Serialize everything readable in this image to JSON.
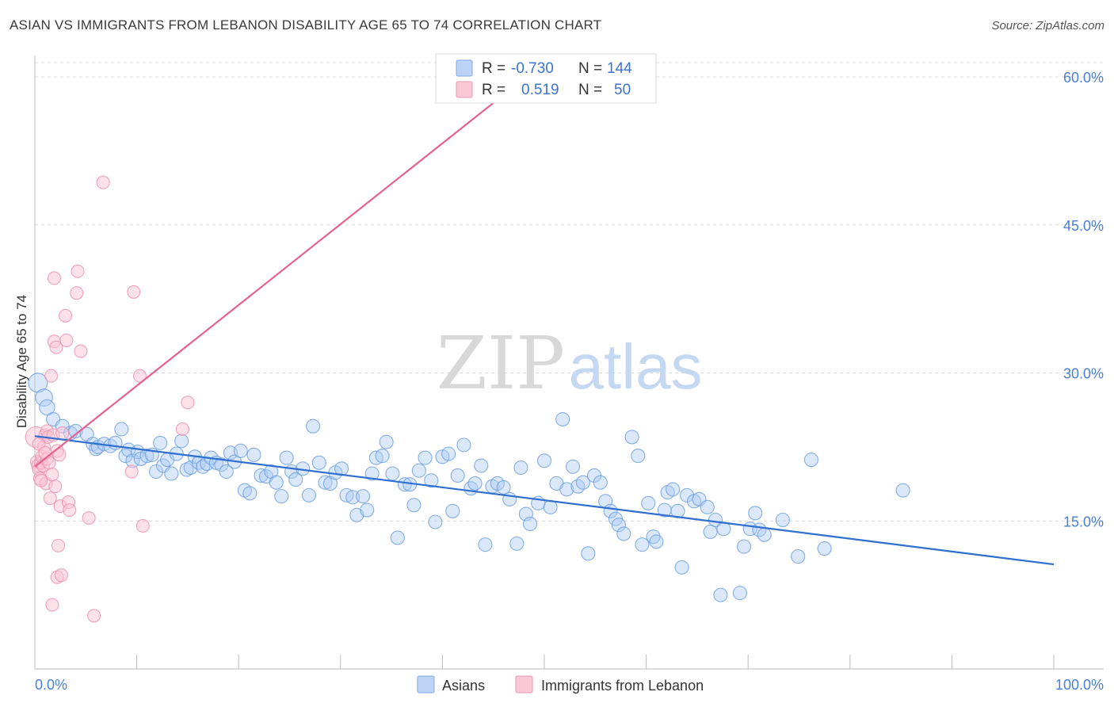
{
  "title": "ASIAN VS IMMIGRANTS FROM LEBANON DISABILITY AGE 65 TO 74 CORRELATION CHART",
  "source": "Source: ZipAtlas.com",
  "watermark": {
    "zip": "ZIP",
    "atlas": "atlas"
  },
  "stats": [
    {
      "r_label": "R =",
      "r_value": "-0.730",
      "n_label": "N =",
      "n_value": "144",
      "color": "#a9c8f2"
    },
    {
      "r_label": "R =",
      "r_value": "0.519",
      "n_label": "N =",
      "n_value": "50",
      "color": "#f7b6c9"
    }
  ],
  "chart_data": {
    "type": "scatter",
    "xlabel": "",
    "ylabel": "Disability Age 65 to 74",
    "xlim": [
      0,
      100
    ],
    "ylim": [
      0,
      62
    ],
    "x_tick_labels": [
      "0.0%",
      "100.0%"
    ],
    "y_ticks": [
      15,
      30,
      45,
      60
    ],
    "y_tick_labels": [
      "15.0%",
      "30.0%",
      "45.0%",
      "60.0%"
    ],
    "grid": true,
    "legend_position": "bottom-center",
    "series": [
      {
        "name": "Asians",
        "color": "#6a9de0",
        "fill": "#aecbf3",
        "trend": {
          "x": [
            0,
            100
          ],
          "y": [
            23.6,
            10.6
          ],
          "color": "#2f6fd0"
        },
        "points": [
          [
            0.3,
            29.0
          ],
          [
            0.9,
            27.5
          ],
          [
            1.2,
            26.5
          ],
          [
            1.8,
            25.3
          ],
          [
            2.7,
            24.6
          ],
          [
            3.5,
            23.9
          ],
          [
            4.0,
            24.1
          ],
          [
            5.1,
            23.8
          ],
          [
            5.7,
            22.8
          ],
          [
            6.0,
            22.3
          ],
          [
            6.2,
            22.5
          ],
          [
            6.8,
            22.8
          ],
          [
            7.4,
            22.6
          ],
          [
            7.9,
            22.9
          ],
          [
            8.5,
            24.3
          ],
          [
            8.9,
            21.6
          ],
          [
            9.2,
            22.2
          ],
          [
            9.6,
            21.1
          ],
          [
            10.1,
            22.0
          ],
          [
            10.4,
            21.3
          ],
          [
            11.0,
            21.6
          ],
          [
            11.5,
            21.7
          ],
          [
            11.9,
            20.0
          ],
          [
            12.3,
            22.9
          ],
          [
            12.6,
            20.6
          ],
          [
            13.0,
            21.2
          ],
          [
            13.4,
            19.8
          ],
          [
            13.9,
            21.8
          ],
          [
            14.4,
            23.1
          ],
          [
            14.9,
            20.2
          ],
          [
            15.3,
            20.4
          ],
          [
            15.7,
            21.5
          ],
          [
            16.1,
            20.9
          ],
          [
            16.5,
            20.5
          ],
          [
            16.9,
            20.8
          ],
          [
            17.3,
            21.4
          ],
          [
            17.8,
            20.9
          ],
          [
            18.3,
            20.7
          ],
          [
            18.8,
            20.0
          ],
          [
            19.2,
            21.9
          ],
          [
            19.6,
            21.0
          ],
          [
            20.2,
            22.1
          ],
          [
            20.6,
            18.1
          ],
          [
            21.1,
            17.8
          ],
          [
            21.5,
            21.7
          ],
          [
            22.2,
            19.6
          ],
          [
            22.7,
            19.5
          ],
          [
            23.2,
            20.0
          ],
          [
            23.7,
            18.9
          ],
          [
            24.2,
            17.5
          ],
          [
            24.7,
            21.4
          ],
          [
            25.2,
            20.0
          ],
          [
            25.6,
            19.2
          ],
          [
            26.3,
            20.3
          ],
          [
            26.9,
            17.6
          ],
          [
            27.3,
            24.6
          ],
          [
            27.9,
            20.9
          ],
          [
            28.5,
            18.9
          ],
          [
            29.0,
            18.8
          ],
          [
            29.5,
            19.9
          ],
          [
            30.1,
            20.3
          ],
          [
            30.6,
            17.6
          ],
          [
            31.2,
            17.4
          ],
          [
            31.6,
            15.6
          ],
          [
            32.2,
            17.5
          ],
          [
            32.6,
            16.1
          ],
          [
            33.1,
            19.8
          ],
          [
            33.5,
            21.4
          ],
          [
            34.1,
            21.6
          ],
          [
            34.5,
            23.0
          ],
          [
            35.1,
            19.8
          ],
          [
            35.6,
            13.3
          ],
          [
            36.3,
            18.7
          ],
          [
            36.8,
            18.7
          ],
          [
            37.2,
            16.6
          ],
          [
            37.7,
            20.1
          ],
          [
            38.3,
            21.4
          ],
          [
            38.9,
            19.1
          ],
          [
            39.3,
            14.9
          ],
          [
            40.0,
            21.5
          ],
          [
            40.6,
            21.8
          ],
          [
            41.0,
            16.0
          ],
          [
            41.5,
            19.6
          ],
          [
            42.1,
            22.7
          ],
          [
            42.8,
            18.3
          ],
          [
            43.2,
            18.8
          ],
          [
            43.8,
            20.6
          ],
          [
            44.2,
            12.6
          ],
          [
            44.9,
            18.5
          ],
          [
            45.4,
            18.8
          ],
          [
            46.0,
            18.4
          ],
          [
            46.6,
            17.2
          ],
          [
            47.3,
            12.7
          ],
          [
            47.7,
            20.4
          ],
          [
            48.2,
            15.7
          ],
          [
            48.6,
            14.7
          ],
          [
            49.4,
            16.8
          ],
          [
            50.0,
            21.1
          ],
          [
            50.6,
            16.4
          ],
          [
            51.2,
            18.8
          ],
          [
            51.8,
            25.3
          ],
          [
            52.2,
            18.2
          ],
          [
            52.8,
            20.5
          ],
          [
            53.3,
            18.5
          ],
          [
            53.8,
            18.9
          ],
          [
            54.3,
            11.7
          ],
          [
            54.9,
            19.6
          ],
          [
            55.5,
            18.9
          ],
          [
            56.0,
            17.0
          ],
          [
            56.5,
            16.0
          ],
          [
            57.0,
            15.2
          ],
          [
            57.3,
            14.6
          ],
          [
            57.8,
            13.7
          ],
          [
            58.6,
            23.5
          ],
          [
            59.2,
            21.6
          ],
          [
            59.6,
            12.6
          ],
          [
            60.2,
            16.8
          ],
          [
            60.7,
            13.4
          ],
          [
            61.0,
            12.9
          ],
          [
            61.8,
            16.1
          ],
          [
            62.1,
            17.9
          ],
          [
            62.6,
            18.2
          ],
          [
            63.1,
            16.0
          ],
          [
            63.5,
            10.3
          ],
          [
            64.0,
            17.6
          ],
          [
            64.7,
            17.0
          ],
          [
            65.2,
            17.2
          ],
          [
            66.0,
            16.4
          ],
          [
            66.3,
            13.9
          ],
          [
            66.8,
            15.1
          ],
          [
            67.3,
            7.5
          ],
          [
            67.6,
            14.2
          ],
          [
            69.2,
            7.7
          ],
          [
            69.6,
            12.4
          ],
          [
            70.2,
            14.2
          ],
          [
            70.7,
            15.8
          ],
          [
            71.1,
            14.1
          ],
          [
            71.6,
            13.6
          ],
          [
            73.4,
            15.1
          ],
          [
            74.9,
            11.4
          ],
          [
            76.2,
            21.2
          ],
          [
            77.5,
            12.2
          ],
          [
            85.2,
            18.1
          ]
        ]
      },
      {
        "name": "Immigrants from Lebanon",
        "color": "#ec8fae",
        "fill": "#f9c3d4",
        "trend": {
          "x": [
            0,
            47
          ],
          "y": [
            20.5,
            59.0
          ],
          "color": "#e4628f"
        },
        "points": [
          [
            0.1,
            23.5
          ],
          [
            0.2,
            21.0
          ],
          [
            0.3,
            20.6
          ],
          [
            0.4,
            20.2
          ],
          [
            0.5,
            19.3
          ],
          [
            0.6,
            20.9
          ],
          [
            0.7,
            21.5
          ],
          [
            0.8,
            20.6
          ],
          [
            0.9,
            22.5
          ],
          [
            1.0,
            23.7
          ],
          [
            1.1,
            18.8
          ],
          [
            1.2,
            24.1
          ],
          [
            1.2,
            21.3
          ],
          [
            1.3,
            23.5
          ],
          [
            1.4,
            20.9
          ],
          [
            1.5,
            17.3
          ],
          [
            1.6,
            29.7
          ],
          [
            1.7,
            19.7
          ],
          [
            1.8,
            23.7
          ],
          [
            1.9,
            33.2
          ],
          [
            1.9,
            39.6
          ],
          [
            2.0,
            18.5
          ],
          [
            2.1,
            32.6
          ],
          [
            2.2,
            9.3
          ],
          [
            2.2,
            22.1
          ],
          [
            2.3,
            12.5
          ],
          [
            2.4,
            21.7
          ],
          [
            2.5,
            16.5
          ],
          [
            2.6,
            9.5
          ],
          [
            3.0,
            35.8
          ],
          [
            3.1,
            33.3
          ],
          [
            3.3,
            16.9
          ],
          [
            3.4,
            16.1
          ],
          [
            4.1,
            38.1
          ],
          [
            4.2,
            40.3
          ],
          [
            4.5,
            32.2
          ],
          [
            5.3,
            15.3
          ],
          [
            5.8,
            5.4
          ],
          [
            6.7,
            49.3
          ],
          [
            9.5,
            20.0
          ],
          [
            9.7,
            38.2
          ],
          [
            10.3,
            29.7
          ],
          [
            10.6,
            14.5
          ],
          [
            14.5,
            24.3
          ],
          [
            15.0,
            27.0
          ],
          [
            1.7,
            6.5
          ],
          [
            0.4,
            22.8
          ],
          [
            0.6,
            19.1
          ],
          [
            1.0,
            21.9
          ],
          [
            2.7,
            23.9
          ]
        ]
      }
    ]
  }
}
